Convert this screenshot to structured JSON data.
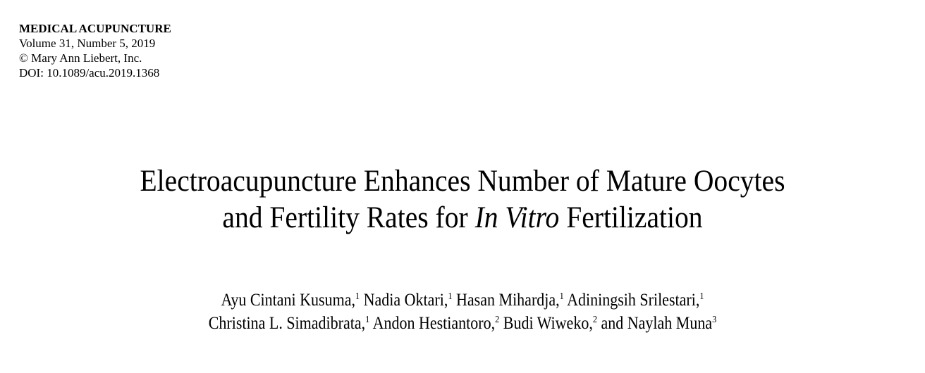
{
  "journal": {
    "name": "MEDICAL ACUPUNCTURE",
    "volume": "Volume 31, Number 5, 2019",
    "copyright": "© Mary Ann Liebert, Inc.",
    "doi": "DOI: 10.1089/acu.2019.1368"
  },
  "title": {
    "line1": "Electroacupuncture Enhances Number of Mature Oocytes",
    "line2_prefix": "and Fertility Rates for ",
    "line2_italic": "In Vitro",
    "line2_suffix": " Fertilization"
  },
  "authors": [
    {
      "name": "Ayu Cintani Kusuma,",
      "aff": "1"
    },
    {
      "name": "Nadia Oktari,",
      "aff": "1"
    },
    {
      "name": "Hasan Mihardja,",
      "aff": "1"
    },
    {
      "name": "Adiningsih Srilestari,",
      "aff": "1"
    },
    {
      "name": "Christina L. Simadibrata,",
      "aff": "1"
    },
    {
      "name": "Andon Hestiantoro,",
      "aff": "2"
    },
    {
      "name": "Budi Wiweko,",
      "aff": "2"
    },
    {
      "name": "and Naylah Muna",
      "aff": "3"
    }
  ]
}
